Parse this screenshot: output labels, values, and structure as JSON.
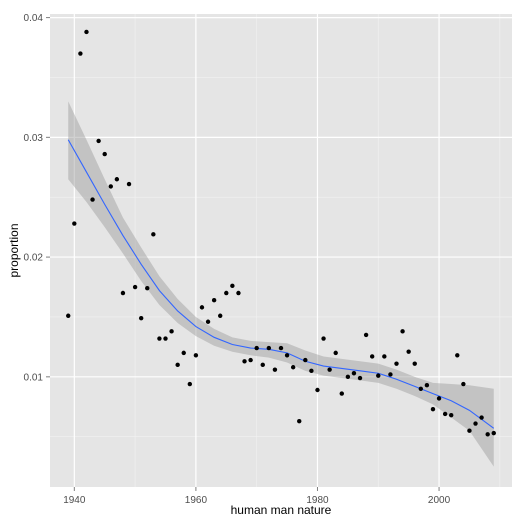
{
  "chart_data": {
    "type": "scatter",
    "title": "",
    "xlabel": "human man nature",
    "ylabel": "proportion",
    "xlim": [
      1936,
      2012
    ],
    "ylim": [
      0.0008,
      0.0403
    ],
    "x_ticks": [
      1940,
      1960,
      1980,
      2000
    ],
    "y_ticks": [
      0.01,
      0.02,
      0.03,
      0.04
    ],
    "x_tick_labels": [
      "1940",
      "1960",
      "1980",
      "2000"
    ],
    "y_tick_labels": [
      "0.01",
      "0.02",
      "0.03",
      "0.04"
    ],
    "grid": true,
    "legend": "none",
    "colors": {
      "panel_background": "#e5e5e5",
      "grid_major": "#ffffff",
      "grid_minor": "#f2f2f2",
      "points": "#000000",
      "smooth_line": "#3366ff",
      "confidence_band": "#999999",
      "axis_text": "#4d4d4d"
    },
    "series": [
      {
        "kind": "points",
        "x": [
          1939,
          1940,
          1941,
          1942,
          1943,
          1944,
          1945,
          1946,
          1947,
          1948,
          1949,
          1950,
          1951,
          1952,
          1953,
          1954,
          1955,
          1956,
          1957,
          1958,
          1959,
          1960,
          1961,
          1962,
          1963,
          1964,
          1965,
          1966,
          1967,
          1968,
          1969,
          1970,
          1971,
          1972,
          1973,
          1974,
          1975,
          1976,
          1977,
          1978,
          1979,
          1980,
          1981,
          1982,
          1983,
          1984,
          1985,
          1986,
          1987,
          1988,
          1989,
          1990,
          1991,
          1992,
          1993,
          1994,
          1995,
          1996,
          1997,
          1998,
          1999,
          2000,
          2001,
          2002,
          2003,
          2004,
          2005,
          2006,
          2007,
          2008,
          2009
        ],
        "y": [
          0.0151,
          0.0228,
          0.037,
          0.0388,
          0.0248,
          0.0297,
          0.0286,
          0.0259,
          0.0265,
          0.017,
          0.0261,
          0.0175,
          0.0149,
          0.0174,
          0.0219,
          0.0132,
          0.0132,
          0.0138,
          0.011,
          0.012,
          0.0094,
          0.0118,
          0.0158,
          0.0146,
          0.0164,
          0.0151,
          0.017,
          0.0176,
          0.017,
          0.0113,
          0.0114,
          0.0124,
          0.011,
          0.0124,
          0.0106,
          0.0124,
          0.0118,
          0.0108,
          0.0063,
          0.0114,
          0.0105,
          0.0089,
          0.0132,
          0.0106,
          0.012,
          0.0086,
          0.01,
          0.0103,
          0.0099,
          0.0135,
          0.0117,
          0.0101,
          0.0117,
          0.0102,
          0.0111,
          0.0138,
          0.0121,
          0.0111,
          0.009,
          0.0093,
          0.0073,
          0.0082,
          0.0069,
          0.0068,
          0.0118,
          0.0094,
          0.0055,
          0.0061,
          0.0066,
          0.0052,
          0.0053
        ]
      },
      {
        "kind": "smooth",
        "x": [
          1939,
          1942,
          1945,
          1948,
          1951,
          1954,
          1957,
          1960,
          1963,
          1966,
          1969,
          1972,
          1975,
          1978,
          1981,
          1984,
          1987,
          1990,
          1993,
          1996,
          1999,
          2002,
          2005,
          2009
        ],
        "y": [
          0.0298,
          0.0271,
          0.0244,
          0.0218,
          0.0194,
          0.0172,
          0.0155,
          0.0142,
          0.0133,
          0.0127,
          0.0124,
          0.0123,
          0.012,
          0.0113,
          0.0109,
          0.0107,
          0.0105,
          0.0103,
          0.0098,
          0.0092,
          0.0086,
          0.008,
          0.0072,
          0.0057
        ],
        "lower": [
          0.0265,
          0.0246,
          0.0225,
          0.0203,
          0.018,
          0.016,
          0.0145,
          0.0134,
          0.0126,
          0.0121,
          0.0118,
          0.0116,
          0.0112,
          0.0105,
          0.0101,
          0.0099,
          0.0097,
          0.0095,
          0.009,
          0.0084,
          0.0077,
          0.0066,
          0.0055,
          0.0025
        ],
        "upper": [
          0.033,
          0.0298,
          0.0265,
          0.0233,
          0.0208,
          0.0184,
          0.0165,
          0.015,
          0.014,
          0.0133,
          0.013,
          0.0129,
          0.0128,
          0.0122,
          0.0117,
          0.0115,
          0.0113,
          0.0111,
          0.0106,
          0.01,
          0.0095,
          0.0094,
          0.0093,
          0.009
        ]
      }
    ]
  }
}
